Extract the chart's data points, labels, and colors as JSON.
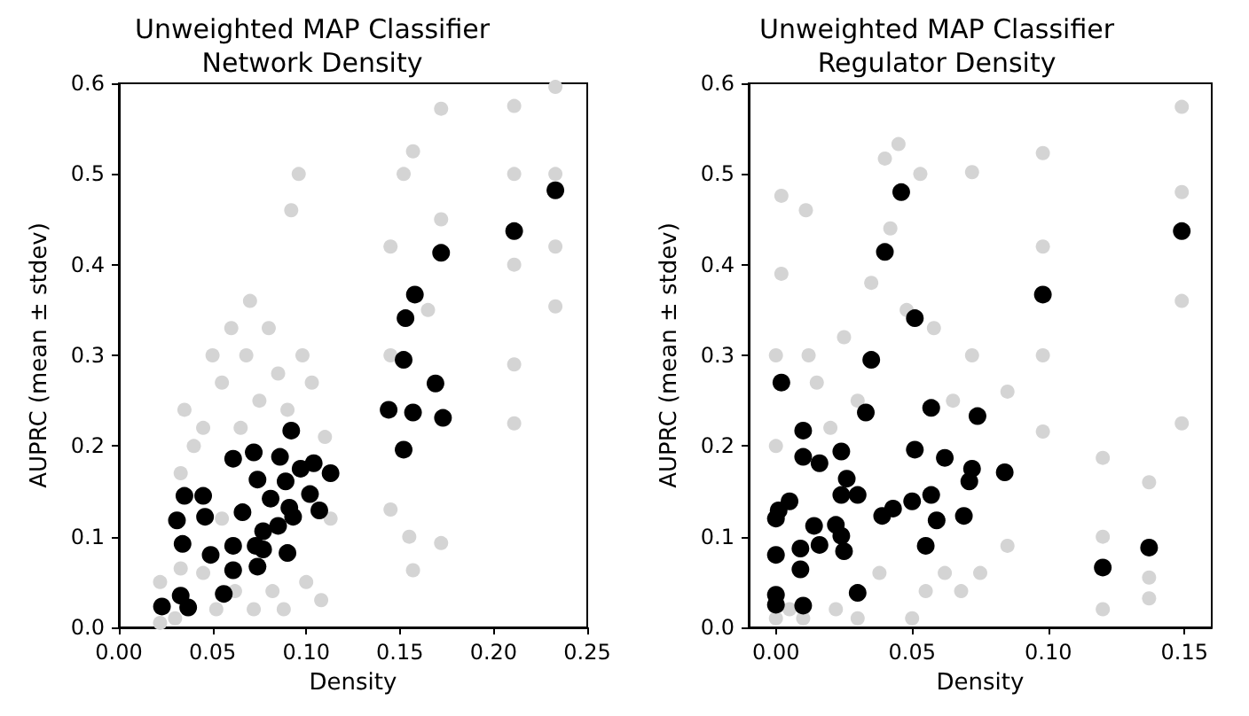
{
  "chart_data": [
    {
      "type": "scatter",
      "title": "Unweighted MAP Classifier\nNetwork Density",
      "xlabel": "Density",
      "ylabel": "AUPRC (mean ± stdev)",
      "xlim": [
        0,
        0.25
      ],
      "xticks": [
        {
          "value": 0,
          "label": "0.00"
        },
        {
          "value": 0.05,
          "label": "0.05"
        },
        {
          "value": 0.1,
          "label": "0.10"
        },
        {
          "value": 0.15,
          "label": "0.15"
        },
        {
          "value": 0.2,
          "label": "0.20"
        },
        {
          "value": 0.25,
          "label": "0.25"
        }
      ],
      "ylim": [
        0,
        0.6
      ],
      "yticks": [
        {
          "value": 0,
          "label": "0.0"
        },
        {
          "value": 0.1,
          "label": "0.1"
        },
        {
          "value": 0.2,
          "label": "0.2"
        },
        {
          "value": 0.3,
          "label": "0.3"
        },
        {
          "value": 0.4,
          "label": "0.4"
        },
        {
          "value": 0.5,
          "label": "0.5"
        },
        {
          "value": 0.6,
          "label": "0.6"
        }
      ],
      "grid": false,
      "marker": "circle",
      "series": [
        {
          "color": "#d4d4d4",
          "x": [
            0.022,
            0.022,
            0.03,
            0.033,
            0.033,
            0.035,
            0.04,
            0.045,
            0.045,
            0.05,
            0.052,
            0.055,
            0.055,
            0.06,
            0.062,
            0.065,
            0.068,
            0.07,
            0.072,
            0.075,
            0.08,
            0.082,
            0.085,
            0.088,
            0.09,
            0.092,
            0.096,
            0.098,
            0.1,
            0.103,
            0.108,
            0.11,
            0.113,
            0.145,
            0.145,
            0.145,
            0.152,
            0.155,
            0.157,
            0.157,
            0.165,
            0.172,
            0.172,
            0.172,
            0.211,
            0.211,
            0.211,
            0.211,
            0.211,
            0.233,
            0.233,
            0.233,
            0.233
          ],
          "values": [
            0.005,
            0.05,
            0.01,
            0.065,
            0.17,
            0.24,
            0.2,
            0.06,
            0.22,
            0.3,
            0.02,
            0.12,
            0.27,
            0.33,
            0.04,
            0.22,
            0.3,
            0.36,
            0.02,
            0.25,
            0.33,
            0.04,
            0.28,
            0.02,
            0.24,
            0.46,
            0.5,
            0.3,
            0.05,
            0.27,
            0.03,
            0.21,
            0.12,
            0.42,
            0.13,
            0.3,
            0.5,
            0.1,
            0.525,
            0.063,
            0.35,
            0.572,
            0.093,
            0.45,
            0.575,
            0.5,
            0.4,
            0.29,
            0.225,
            0.596,
            0.5,
            0.42,
            0.354
          ]
        },
        {
          "color": "#000000",
          "x": [
            0.023,
            0.033,
            0.037,
            0.035,
            0.031,
            0.034,
            0.045,
            0.046,
            0.049,
            0.056,
            0.061,
            0.061,
            0.061,
            0.066,
            0.072,
            0.074,
            0.073,
            0.074,
            0.077,
            0.081,
            0.086,
            0.085,
            0.089,
            0.09,
            0.092,
            0.091,
            0.093,
            0.097,
            0.104,
            0.102,
            0.107,
            0.113,
            0.077,
            0.144,
            0.152,
            0.153,
            0.158,
            0.157,
            0.152,
            0.169,
            0.173,
            0.172,
            0.211,
            0.233
          ],
          "values": [
            0.023,
            0.035,
            0.022,
            0.145,
            0.118,
            0.092,
            0.145,
            0.122,
            0.08,
            0.037,
            0.186,
            0.09,
            0.063,
            0.127,
            0.193,
            0.163,
            0.09,
            0.067,
            0.106,
            0.142,
            0.188,
            0.112,
            0.161,
            0.082,
            0.217,
            0.132,
            0.122,
            0.175,
            0.181,
            0.147,
            0.129,
            0.17,
            0.086,
            0.24,
            0.295,
            0.341,
            0.367,
            0.237,
            0.196,
            0.269,
            0.231,
            0.413,
            0.437,
            0.482
          ]
        }
      ]
    },
    {
      "type": "scatter",
      "title": "Unweighted MAP Classifier\nRegulator Density",
      "xlabel": "Density",
      "ylabel": "AUPRC (mean ± stdev)",
      "xlim": [
        -0.01,
        0.16
      ],
      "xticks": [
        {
          "value": 0,
          "label": "0.00"
        },
        {
          "value": 0.05,
          "label": "0.05"
        },
        {
          "value": 0.1,
          "label": "0.10"
        },
        {
          "value": 0.15,
          "label": "0.15"
        }
      ],
      "ylim": [
        0,
        0.6
      ],
      "yticks": [
        {
          "value": 0,
          "label": "0.0"
        },
        {
          "value": 0.1,
          "label": "0.1"
        },
        {
          "value": 0.2,
          "label": "0.2"
        },
        {
          "value": 0.3,
          "label": "0.3"
        },
        {
          "value": 0.4,
          "label": "0.4"
        },
        {
          "value": 0.5,
          "label": "0.5"
        },
        {
          "value": 0.6,
          "label": "0.6"
        }
      ],
      "grid": false,
      "marker": "circle",
      "series": [
        {
          "color": "#d4d4d4",
          "x": [
            0,
            0,
            0,
            0.002,
            0.002,
            0.005,
            0.01,
            0.011,
            0.012,
            0.015,
            0.02,
            0.022,
            0.025,
            0.03,
            0.03,
            0.035,
            0.038,
            0.04,
            0.042,
            0.045,
            0.048,
            0.05,
            0.053,
            0.055,
            0.058,
            0.062,
            0.065,
            0.068,
            0.072,
            0.072,
            0.075,
            0.085,
            0.085,
            0.098,
            0.098,
            0.098,
            0.098,
            0.12,
            0.12,
            0.12,
            0.137,
            0.137,
            0.137,
            0.149,
            0.149,
            0.149,
            0.149
          ],
          "values": [
            0.01,
            0.2,
            0.3,
            0.39,
            0.476,
            0.02,
            0.01,
            0.46,
            0.3,
            0.27,
            0.22,
            0.02,
            0.32,
            0.01,
            0.25,
            0.38,
            0.06,
            0.517,
            0.44,
            0.533,
            0.35,
            0.01,
            0.5,
            0.04,
            0.33,
            0.06,
            0.25,
            0.04,
            0.502,
            0.3,
            0.06,
            0.26,
            0.09,
            0.523,
            0.42,
            0.3,
            0.216,
            0.187,
            0.1,
            0.02,
            0.16,
            0.055,
            0.032,
            0.574,
            0.48,
            0.36,
            0.225
          ]
        },
        {
          "color": "#000000",
          "x": [
            0,
            0,
            0,
            0,
            0.001,
            0.005,
            0.002,
            0.009,
            0.009,
            0.01,
            0.01,
            0.01,
            0.016,
            0.014,
            0.016,
            0.022,
            0.024,
            0.025,
            0.024,
            0.024,
            0.026,
            0.03,
            0.03,
            0.033,
            0.035,
            0.039,
            0.043,
            0.04,
            0.046,
            0.051,
            0.051,
            0.05,
            0.057,
            0.057,
            0.059,
            0.055,
            0.062,
            0.069,
            0.071,
            0.072,
            0.074,
            0.084,
            0.098,
            0.12,
            0.137,
            0.149
          ],
          "values": [
            0.025,
            0.036,
            0.08,
            0.12,
            0.129,
            0.139,
            0.27,
            0.087,
            0.064,
            0.024,
            0.217,
            0.188,
            0.091,
            0.112,
            0.181,
            0.113,
            0.101,
            0.084,
            0.146,
            0.194,
            0.164,
            0.146,
            0.038,
            0.237,
            0.295,
            0.123,
            0.131,
            0.414,
            0.48,
            0.341,
            0.196,
            0.139,
            0.242,
            0.146,
            0.118,
            0.09,
            0.187,
            0.123,
            0.161,
            0.175,
            0.233,
            0.171,
            0.367,
            0.066,
            0.088,
            0.437
          ]
        }
      ]
    }
  ]
}
